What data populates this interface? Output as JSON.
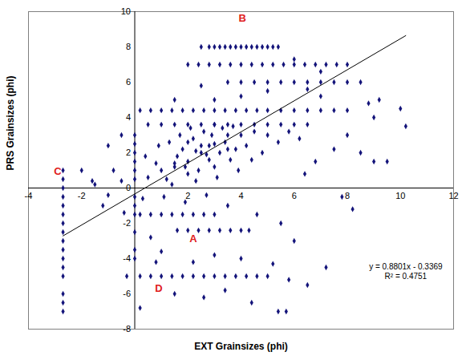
{
  "chart_data": {
    "type": "scatter",
    "x_label": "EXT Grainsizes (phi)",
    "y_label": "PRS Grainsizes (phi)",
    "color": "#14147a",
    "marker": "diamond",
    "grid": false,
    "xlim": [
      -4,
      12
    ],
    "ylim": [
      -8,
      10
    ],
    "xticks": [
      -4,
      -2,
      2,
      4,
      6,
      8,
      10,
      12
    ],
    "yticks": [
      -8,
      -6,
      -4,
      -2,
      0,
      2,
      4,
      6,
      8,
      10
    ],
    "x": [
      2.5,
      2.8,
      3.0,
      3.2,
      3.4,
      3.6,
      3.8,
      4.0,
      4.2,
      4.4,
      4.6,
      4.8,
      5.0,
      5.2,
      5.4,
      2.0,
      2.4,
      2.8,
      3.2,
      3.6,
      4.0,
      4.4,
      4.8,
      5.2,
      5.6,
      6.0,
      6.4,
      6.8,
      7.2,
      7.6,
      8.0,
      3.5,
      4.0,
      4.5,
      5.0,
      5.5,
      6.0,
      6.5,
      7.0,
      7.5,
      8.0,
      0.2,
      0.6,
      1.0,
      1.4,
      1.8,
      2.2,
      2.6,
      3.0,
      3.4,
      3.8,
      4.2,
      4.6,
      5.0,
      5.5,
      6.0,
      6.5,
      7.0,
      7.5,
      8.0,
      0.5,
      1.0,
      1.5,
      2.0,
      2.5,
      3.0,
      3.5,
      4.0,
      4.5,
      5.0,
      5.5,
      6.0,
      6.5,
      -0.3,
      0.2,
      0.6,
      1.0,
      1.4,
      1.8,
      2.2,
      2.6,
      3.0,
      3.4,
      3.8,
      4.2,
      4.6,
      5.0,
      1.6,
      2.0,
      2.4,
      2.8,
      3.2,
      3.6,
      4.0,
      4.3,
      0.2,
      0.6,
      1.0,
      1.4,
      1.8,
      2.2,
      2.6,
      3.0,
      -2.7,
      -2.7,
      -2.7,
      -2.7,
      -2.7,
      -2.7,
      -2.7,
      -2.7,
      -2.7,
      -2.7,
      -2.7,
      -2.7,
      -2.7,
      -2.7,
      -2.7,
      -2.7,
      0,
      0,
      0,
      0,
      0,
      0,
      0,
      0,
      0,
      0,
      0,
      0,
      1.0,
      1.5,
      2.0,
      2.5,
      3.0,
      3.5,
      2.2,
      2.8,
      3.2,
      1.8,
      2.6,
      3.4,
      1.2,
      2.0,
      3.0,
      4.0,
      4.5,
      3.8,
      2.4,
      1.6,
      0.8,
      0.5,
      1.4,
      2.8,
      3.6,
      4.2,
      5.0,
      4.8,
      2.1,
      1.3,
      2.9,
      3.3,
      0.4,
      0.9,
      1.7,
      2.3,
      3.1,
      3.9,
      4.4,
      5.4,
      5.8,
      6.2,
      1.1,
      1.9,
      2.7,
      3.5,
      0.3,
      -0.5,
      -1.0,
      -1.5,
      -1.2,
      -0.8,
      -0.4,
      4.6,
      5.5,
      6.0,
      4.0,
      3.0,
      2.2,
      1.0,
      0.6,
      5.2,
      6.5,
      5.8,
      7.2,
      4.4,
      5.4,
      5.7,
      1.5,
      0.2,
      6.8,
      7.5,
      8.0,
      8.5,
      9.0,
      9.5,
      10.2,
      8.8,
      9.2,
      7.0,
      6.5,
      5.0,
      4.0,
      3.0,
      2.5,
      1.5,
      6.0,
      7.0,
      8.5,
      9.0,
      10.0,
      -0.5,
      -1.0,
      -2.0,
      -1.6,
      0.8,
      3.4,
      2.6,
      6.4,
      7.8,
      8.2,
      2.0,
      2.5,
      3.0,
      1.5,
      3.5,
      2.7,
      2.3,
      3.7,
      1.9
    ],
    "values": [
      8,
      8,
      8,
      8,
      8,
      8,
      8,
      8,
      8,
      8,
      8,
      8,
      8,
      8,
      8,
      7,
      7,
      7,
      7,
      7,
      7,
      7,
      7,
      7,
      7,
      7,
      7,
      7,
      7,
      7,
      7,
      6,
      6,
      6,
      6,
      6,
      6,
      6,
      6,
      6,
      6,
      4.4,
      4.4,
      4.4,
      4.4,
      4.4,
      4.4,
      4.4,
      4.4,
      4.4,
      4.4,
      4.4,
      4.4,
      4.4,
      4.4,
      4.4,
      4.4,
      4.4,
      4.4,
      4.4,
      3.6,
      3.6,
      3.6,
      3.6,
      3.6,
      3.6,
      3.6,
      3.6,
      3.6,
      3.6,
      3.6,
      3.6,
      3.6,
      -5,
      -5,
      -5,
      -5,
      -5,
      -5,
      -5,
      -5,
      -5,
      -5,
      -5,
      -5,
      -5,
      -5,
      -2.4,
      -2.4,
      -2.4,
      -2.4,
      -2.4,
      -2.4,
      -2.4,
      -2.4,
      -1.5,
      -1.5,
      -1.5,
      -1.5,
      -1.5,
      -1.5,
      -1.5,
      -1.5,
      -7,
      -6.5,
      -6,
      -5,
      -4.5,
      -4,
      -3.5,
      -3,
      -2.5,
      -2,
      -1.5,
      -1,
      -0.5,
      0,
      0.5,
      1.0,
      -4,
      -3.5,
      -2.5,
      -1.5,
      -1,
      -0.5,
      0.5,
      1,
      1.5,
      2,
      2.5,
      3,
      1.0,
      1.2,
      1.5,
      2.0,
      2.5,
      3.0,
      2.8,
      1.6,
      2.0,
      2.2,
      3.2,
      2.6,
      0.5,
      0.8,
      1.2,
      3.0,
      3.2,
      2.2,
      1.0,
      1.8,
      1.4,
      0.6,
      0.2,
      2.4,
      1.6,
      2.4,
      3.0,
      2.0,
      3.4,
      2.6,
      3.0,
      3.4,
      1.8,
      2.4,
      3.0,
      0.4,
      0.6,
      1.0,
      1.6,
      2.6,
      3.2,
      2.8,
      -0.5,
      -0.8,
      -0.4,
      -1.0,
      -0.6,
      0.4,
      -0.4,
      0.2,
      -1.0,
      1.0,
      -1.4,
      -1.5,
      -2.0,
      -3.0,
      -4.0,
      -3.8,
      -4.2,
      -3.6,
      -2.8,
      -4.3,
      -5.5,
      -5.2,
      -4.5,
      -6.5,
      -7.0,
      -7.0,
      -6.0,
      -6.8,
      1.5,
      2.2,
      3.0,
      2.0,
      1.5,
      1.5,
      3.5,
      4.8,
      5.0,
      5.2,
      5.6,
      5.5,
      5.2,
      5.0,
      5.8,
      5.0,
      7.3,
      6.6,
      6.0,
      4.0,
      4.5,
      3.0,
      2.4,
      1.0,
      0.4,
      -4.2,
      -5.8,
      -6.2,
      0.8,
      -0.5,
      -1.2,
      2.6,
      2.4,
      3.6,
      1.4,
      2.2,
      1.9,
      2.1,
      3.5,
      1.2
    ],
    "trendline": {
      "x": [
        -2.7,
        10.2
      ],
      "y": [
        -2.7133,
        8.6401
      ],
      "color": "#000000"
    },
    "labels": [
      {
        "text": "A",
        "x": 2.2,
        "y": -2.9,
        "color": "#e02020"
      },
      {
        "text": "B",
        "x": 4.05,
        "y": 9.6,
        "color": "#e02020"
      },
      {
        "text": "C",
        "x": -2.9,
        "y": 0.95,
        "color": "#e02020"
      },
      {
        "text": "D",
        "x": 0.9,
        "y": -5.7,
        "color": "#e02020"
      }
    ],
    "annotations": [
      {
        "text": "y = 0.8801x - 0.3369",
        "x": 10.2,
        "y": -4.45,
        "color": "#000000"
      },
      {
        "text": "R² = 0.4751",
        "x": 10.2,
        "y": -5.0,
        "color": "#000000"
      }
    ]
  }
}
